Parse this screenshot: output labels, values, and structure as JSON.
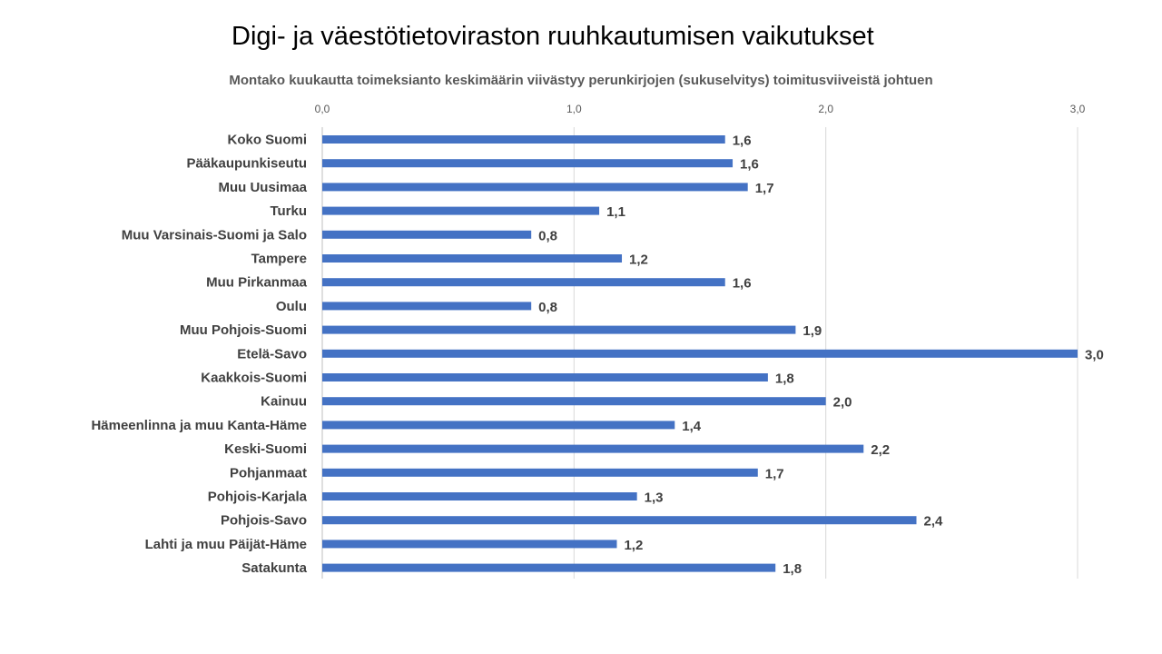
{
  "header": {
    "title": "Digi- ja väestötietoviraston ruuhkautumisen vaikutukset"
  },
  "chart_data": {
    "type": "bar",
    "orientation": "horizontal",
    "title": "Montako kuukautta toimeksianto keskimäärin viivästyy perunkirjojen (sukuselvitys) toimitusviiveistä johtuen",
    "categories": [
      "Koko Suomi",
      "Pääkaupunkiseutu",
      "Muu Uusimaa",
      "Turku",
      "Muu Varsinais-Suomi ja Salo",
      "Tampere",
      "Muu Pirkanmaa",
      "Oulu",
      "Muu Pohjois-Suomi",
      "Etelä-Savo",
      "Kaakkois-Suomi",
      "Kainuu",
      "Hämeenlinna ja muu Kanta-Häme",
      "Keski-Suomi",
      "Pohjanmaat",
      "Pohjois-Karjala",
      "Pohjois-Savo",
      "Lahti ja muu Päijät-Häme",
      "Satakunta"
    ],
    "values": [
      1.6,
      1.63,
      1.69,
      1.1,
      0.83,
      1.19,
      1.6,
      0.83,
      1.88,
      3.0,
      1.77,
      2.0,
      1.4,
      2.15,
      1.73,
      1.25,
      2.36,
      1.17,
      1.8
    ],
    "value_labels": [
      "1,6",
      "1,6",
      "1,7",
      "1,1",
      "0,8",
      "1,2",
      "1,6",
      "0,8",
      "1,9",
      "3,0",
      "1,8",
      "2,0",
      "1,4",
      "2,2",
      "1,7",
      "1,3",
      "2,4",
      "1,2",
      "1,8"
    ],
    "xticks": [
      0,
      1,
      2,
      3
    ],
    "xtick_labels": [
      "0,0",
      "1,0",
      "2,0",
      "3,0"
    ],
    "xlim": [
      0,
      3
    ],
    "axis_position": "top",
    "grid": true,
    "legend": "none",
    "colors": {
      "bar": "#4472C4",
      "grid": "#D9D9D9",
      "axis": "#BFBFBF"
    }
  }
}
